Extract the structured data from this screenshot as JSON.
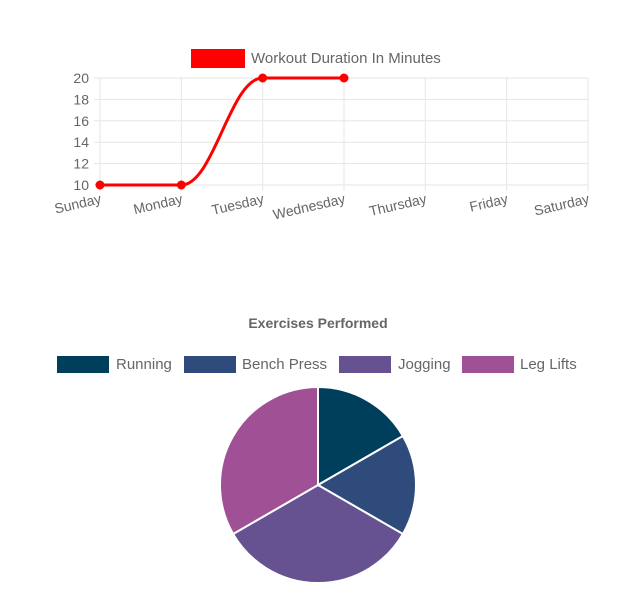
{
  "chart_data": [
    {
      "type": "line",
      "categories": [
        "Sunday",
        "Monday",
        "Tuesday",
        "Wednesday",
        "Thursday",
        "Friday",
        "Saturday"
      ],
      "series": [
        {
          "name": "Workout Duration In Minutes",
          "values": [
            10,
            10,
            20,
            20,
            null,
            null,
            null
          ],
          "color": "#ff0000"
        }
      ],
      "ylim": [
        10,
        20
      ],
      "yticks": [
        20,
        18,
        16,
        14,
        12,
        10
      ],
      "grid": true,
      "legend_position": "top",
      "curve": "smooth"
    },
    {
      "type": "pie",
      "title": "Exercises Performed",
      "labels": [
        "Running",
        "Bench Press",
        "Jogging",
        "Leg Lifts"
      ],
      "values": [
        1,
        1,
        2,
        2
      ],
      "colors": [
        "#003f5c",
        "#2f4b7c",
        "#665191",
        "#a05195"
      ],
      "legend_position": "top"
    }
  ]
}
